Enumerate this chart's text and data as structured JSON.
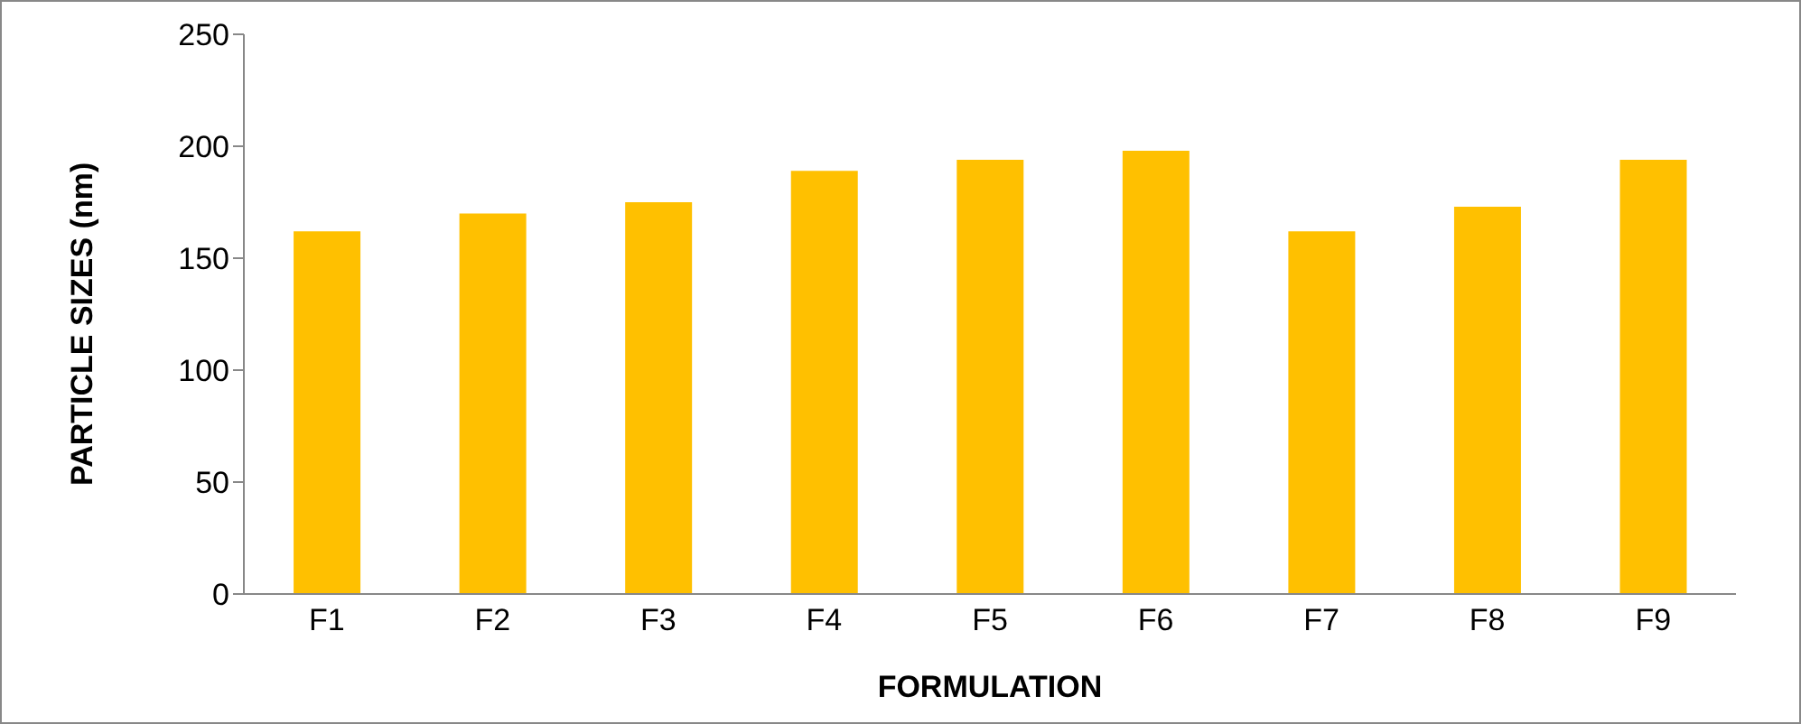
{
  "chart_data": {
    "type": "bar",
    "xlabel": "FORMULATION",
    "ylabel": "PARTICLE SIZES (nm)",
    "categories": [
      "F1",
      "F2",
      "F3",
      "F4",
      "F5",
      "F6",
      "F7",
      "F8",
      "F9"
    ],
    "values": [
      162,
      170,
      175,
      189,
      194,
      198,
      162,
      173,
      194
    ],
    "color": "#ffc000",
    "ylim": [
      0,
      250
    ],
    "yticks": [
      0,
      50,
      100,
      150,
      200,
      250
    ],
    "grid": false,
    "legend": false
  }
}
